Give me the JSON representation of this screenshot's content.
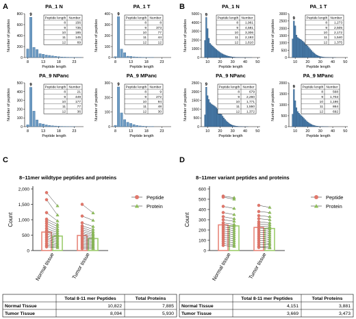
{
  "panel_letters": [
    "A",
    "B",
    "C",
    "D"
  ],
  "table_header": {
    "length": "Peptide length",
    "number": "Number"
  },
  "colors": {
    "hist_a_fill": "#6d9bc3",
    "hist_a_stroke": "#3d6d98",
    "hist_b_fill": "#4a7fae",
    "hist_b_stroke": "#1f3f63",
    "peptide": "#e0776b",
    "protein": "#8fbf5a",
    "bar_peptide": "#e8857a",
    "bar_protein": "#9ccb6c",
    "line": "#333333"
  },
  "chart_data": [
    {
      "panel": "A",
      "type": "bar",
      "title": "PA_1 N",
      "xlabel": "Peptide length",
      "ylabel": "Number of peptides",
      "x": [
        8,
        9,
        10,
        11,
        12,
        13,
        14,
        15,
        16,
        17,
        18,
        19,
        20,
        21,
        22,
        23,
        24,
        25
      ],
      "values": [
        156,
        735,
        185,
        145,
        69,
        60,
        45,
        38,
        30,
        22,
        15,
        10,
        7,
        5,
        4,
        3,
        2,
        1
      ],
      "xticks": [
        8,
        13,
        18,
        23
      ],
      "yticks": [
        0,
        200,
        400,
        600,
        800
      ],
      "ylim": [
        0,
        800
      ],
      "peak_label": "9",
      "table": [
        [
          "8",
          "156"
        ],
        [
          "9",
          "735"
        ],
        [
          "10",
          "185"
        ],
        [
          "11",
          "145"
        ],
        [
          "12",
          "69"
        ]
      ]
    },
    {
      "panel": "A",
      "type": "bar",
      "title": "PA_1 T",
      "xlabel": "Peptide length",
      "ylabel": "Number of peptides",
      "x": [
        8,
        9,
        10,
        11,
        12,
        13,
        14,
        15,
        16,
        17,
        18,
        19,
        20,
        21,
        22,
        23,
        24,
        25
      ],
      "values": [
        8,
        373,
        77,
        44,
        12,
        10,
        6,
        4,
        3,
        2,
        1,
        1,
        1,
        0,
        0,
        0,
        0,
        0
      ],
      "xticks": [
        8,
        13,
        18,
        23
      ],
      "yticks": [
        0,
        100,
        200,
        300,
        400
      ],
      "ylim": [
        0,
        400
      ],
      "peak_label": "9",
      "table": [
        [
          "8",
          "8"
        ],
        [
          "9",
          "373"
        ],
        [
          "10",
          "77"
        ],
        [
          "11",
          "44"
        ],
        [
          "12",
          "12"
        ]
      ]
    },
    {
      "panel": "A",
      "type": "bar",
      "title": "PA_9 NPanc",
      "xlabel": "Peptide length",
      "ylabel": "Number of peptides",
      "x": [
        8,
        9,
        10,
        11,
        12,
        13,
        14,
        15,
        16,
        17,
        18,
        19,
        20,
        21,
        22,
        23,
        24,
        25
      ],
      "values": [
        21,
        449,
        177,
        77,
        36,
        30,
        20,
        14,
        10,
        7,
        5,
        3,
        2,
        1,
        1,
        1,
        0,
        0
      ],
      "xticks": [
        8,
        13,
        18,
        23
      ],
      "yticks": [
        0,
        100,
        200,
        300,
        400,
        500
      ],
      "ylim": [
        0,
        500
      ],
      "peak_label": "9",
      "table": [
        [
          "8",
          "21"
        ],
        [
          "9",
          "449"
        ],
        [
          "10",
          "177"
        ],
        [
          "11",
          "77"
        ],
        [
          "12",
          "36"
        ]
      ]
    },
    {
      "panel": "A",
      "type": "bar",
      "title": "PA_9 MPanc",
      "xlabel": "Peptide length",
      "ylabel": "Number of peptides",
      "x": [
        8,
        9,
        10,
        11,
        12,
        13,
        14,
        15,
        16,
        17,
        18,
        19,
        20,
        21,
        22,
        23,
        24,
        25
      ],
      "values": [
        9,
        272,
        94,
        48,
        30,
        22,
        14,
        8,
        5,
        3,
        2,
        1,
        1,
        0,
        0,
        0,
        0,
        0
      ],
      "xticks": [
        8,
        13,
        18,
        23
      ],
      "yticks": [
        0,
        100,
        200,
        300
      ],
      "ylim": [
        0,
        300
      ],
      "peak_label": "9",
      "table": [
        [
          "8",
          "9"
        ],
        [
          "9",
          "272"
        ],
        [
          "10",
          "94"
        ],
        [
          "11",
          "48"
        ],
        [
          "12",
          "30"
        ]
      ]
    },
    {
      "panel": "B",
      "type": "bar",
      "title": "PA_1 N",
      "xlabel": "Peptide length",
      "ylabel": "Number of peptides",
      "x_start": 8,
      "values": [
        1961,
        4581,
        3306,
        2193,
        1610,
        1450,
        1320,
        1180,
        1050,
        920,
        800,
        690,
        580,
        490,
        410,
        340,
        280,
        230,
        180,
        140,
        110,
        85,
        65,
        50,
        38,
        28,
        20,
        15,
        11,
        8,
        6,
        4,
        3,
        2,
        2,
        1,
        1,
        1,
        0,
        0,
        0,
        0,
        0
      ],
      "xticks": [
        10,
        20,
        30,
        40,
        50
      ],
      "yticks": [
        0,
        1000,
        2000,
        3000,
        4000,
        5000
      ],
      "ylim": [
        0,
        5000
      ],
      "peak_label": "9",
      "table": [
        [
          "8",
          "1,961"
        ],
        [
          "9",
          "4,581"
        ],
        [
          "10",
          "3,306"
        ],
        [
          "11",
          "2,193"
        ],
        [
          "12",
          "1,610"
        ]
      ]
    },
    {
      "panel": "B",
      "type": "bar",
      "title": "PA_1 T",
      "xlabel": "Peptide length",
      "ylabel": "Number of peptides",
      "x_start": 8,
      "values": [
        1273,
        2505,
        2172,
        1540,
        1375,
        1300,
        1250,
        1200,
        1120,
        1050,
        960,
        870,
        780,
        680,
        580,
        480,
        390,
        310,
        240,
        180,
        130,
        95,
        70,
        50,
        35,
        25,
        18,
        12,
        8,
        6,
        4,
        3,
        2,
        1,
        1,
        0,
        0,
        0,
        0,
        0,
        0,
        0,
        0
      ],
      "xticks": [
        10,
        20,
        30,
        40,
        50
      ],
      "yticks": [
        0,
        500,
        1000,
        1500,
        2000,
        2500,
        3000
      ],
      "ylim": [
        0,
        3000
      ],
      "peak_label": "9",
      "table": [
        [
          "8",
          "1,273"
        ],
        [
          "9",
          "2,505"
        ],
        [
          "10",
          "2,172"
        ],
        [
          "11",
          "1,540"
        ],
        [
          "12",
          "1,375"
        ]
      ]
    },
    {
      "panel": "B",
      "type": "bar",
      "title": "PA_9 NPanc",
      "xlabel": "Peptide length",
      "ylabel": "Number of peptides",
      "x_start": 8,
      "values": [
        679,
        2260,
        1771,
        1550,
        1372,
        1300,
        1250,
        1200,
        1150,
        1080,
        1000,
        900,
        800,
        700,
        600,
        500,
        410,
        330,
        260,
        200,
        150,
        110,
        80,
        58,
        42,
        30,
        21,
        15,
        10,
        7,
        5,
        3,
        2,
        1,
        1,
        0,
        0,
        0,
        0,
        0,
        0,
        0,
        0
      ],
      "xticks": [
        10,
        20,
        30,
        40,
        50
      ],
      "yticks": [
        0,
        500,
        1000,
        1500,
        2000,
        2500
      ],
      "ylim": [
        0,
        2500
      ],
      "peak_label": "9",
      "table": [
        [
          "8",
          "679"
        ],
        [
          "9",
          "2,260"
        ],
        [
          "10",
          "1,771"
        ],
        [
          "11",
          "1,550"
        ],
        [
          "12",
          "1,372"
        ]
      ]
    },
    {
      "panel": "B",
      "type": "bar",
      "title": "PA_9 MPanc",
      "xlabel": "Peptide length",
      "ylabel": "Number of peptides",
      "x_start": 8,
      "values": [
        568,
        1703,
        1186,
        864,
        692,
        620,
        560,
        500,
        440,
        380,
        320,
        265,
        215,
        170,
        130,
        100,
        75,
        55,
        40,
        28,
        20,
        14,
        10,
        7,
        5,
        3,
        2,
        1,
        1,
        0,
        0,
        0,
        0,
        0,
        0,
        0,
        0,
        0,
        0,
        0,
        0,
        0,
        0
      ],
      "xticks": [
        10,
        20,
        30,
        40,
        50
      ],
      "yticks": [
        0,
        500,
        1000,
        1500,
        2000
      ],
      "ylim": [
        0,
        2000
      ],
      "peak_label": "9",
      "table": [
        [
          "8",
          "568"
        ],
        [
          "9",
          "1,703"
        ],
        [
          "10",
          "1,186"
        ],
        [
          "11",
          "864"
        ],
        [
          "12",
          "692"
        ]
      ]
    },
    {
      "panel": "C",
      "type": "bar",
      "title": "8–11mer wildtype peptides and proteins",
      "ylabel": "Count",
      "categories": [
        "Normal tissue",
        "Tumor tissue"
      ],
      "ylim": [
        0,
        2000
      ],
      "yticks": [
        "0",
        "500",
        "1,000",
        "1,500",
        "2,000"
      ],
      "series": [
        {
          "name": "Peptide",
          "mean": [
            600,
            490
          ],
          "normal": [
            1880,
            1650,
            1230,
            1020,
            950,
            880,
            800,
            720,
            650,
            600,
            540,
            480,
            420,
            360,
            300,
            230,
            170,
            120
          ],
          "tumor": [
            1500,
            1120,
            900,
            800,
            740,
            680,
            620,
            560,
            500,
            450,
            400,
            350,
            300,
            250,
            200,
            150,
            100,
            60
          ]
        },
        {
          "name": "Protein",
          "mean": [
            470,
            390
          ],
          "normal": [
            1450,
            1150,
            960,
            850,
            780,
            700,
            640,
            580,
            520,
            470,
            420,
            370,
            320,
            270,
            220,
            170,
            130,
            90
          ],
          "tumor": [
            1220,
            980,
            780,
            690,
            620,
            560,
            510,
            460,
            410,
            370,
            330,
            290,
            250,
            210,
            170,
            130,
            90,
            60
          ]
        }
      ],
      "legend": [
        "Peptide",
        "Protein"
      ],
      "legend_position": "top-right",
      "table": {
        "headers": [
          "",
          "Total 8-11 mer Peptides",
          "Total Proteins"
        ],
        "rows": [
          [
            "Normal Tissue",
            "10,822",
            "7,885"
          ],
          [
            "Tumor Tissue",
            "8,094",
            "5,930"
          ]
        ]
      }
    },
    {
      "panel": "D",
      "type": "bar",
      "title": "8–11mer variant peptides and proteins",
      "ylabel": "Count",
      "categories": [
        "Normal tissue",
        "Tumor tissue"
      ],
      "ylim": [
        0,
        600
      ],
      "yticks": [
        "0",
        "100",
        "200",
        "300",
        "400",
        "500",
        "600"
      ],
      "series": [
        {
          "name": "Peptide",
          "mean": [
            250,
            225
          ],
          "normal": [
            530,
            520,
            430,
            370,
            330,
            300,
            270,
            250,
            230,
            210,
            190,
            170,
            150,
            130,
            110,
            90,
            70,
            50
          ],
          "tumor": [
            440,
            380,
            340,
            310,
            280,
            260,
            240,
            220,
            200,
            180,
            160,
            140,
            120,
            100,
            80,
            60,
            40,
            30
          ]
        },
        {
          "name": "Protein",
          "mean": [
            240,
            215
          ],
          "normal": [
            515,
            500,
            410,
            350,
            310,
            285,
            255,
            235,
            215,
            195,
            175,
            155,
            135,
            115,
            95,
            75,
            55,
            40
          ],
          "tumor": [
            420,
            370,
            330,
            300,
            270,
            250,
            230,
            210,
            190,
            170,
            150,
            130,
            110,
            90,
            70,
            55,
            35,
            25
          ]
        }
      ],
      "legend": [
        "Peptide",
        "Protein"
      ],
      "legend_position": "top-right",
      "table": {
        "headers": [
          "",
          "Total 8-11 mer Peptides",
          "Total Proteins"
        ],
        "rows": [
          [
            "Normal Tissue",
            "4,151",
            "3,881"
          ],
          [
            "Tumor Tissue",
            "3,669",
            "3,473"
          ]
        ]
      }
    }
  ]
}
